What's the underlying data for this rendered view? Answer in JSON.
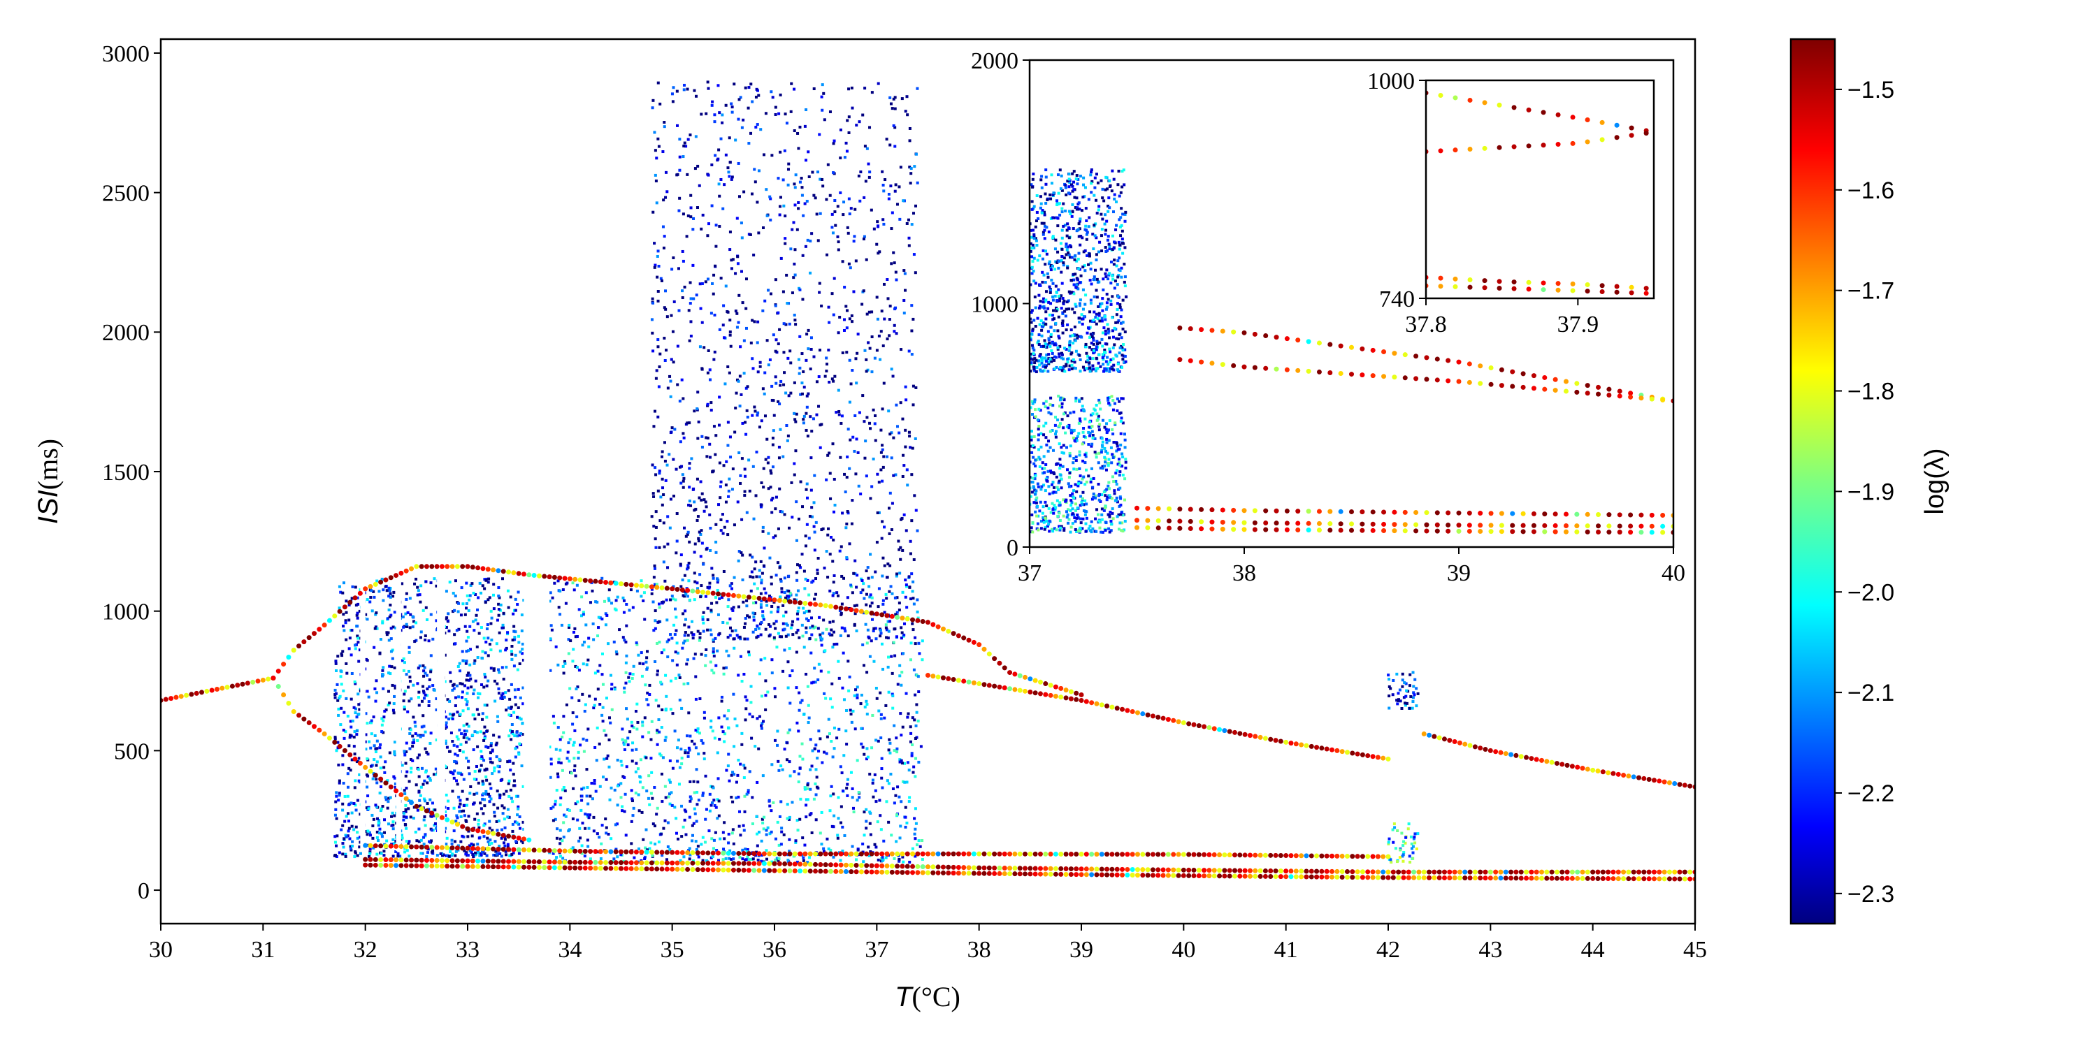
{
  "chart_data": [
    {
      "id": "main",
      "type": "scatter",
      "title": "",
      "xlabel_main": "T",
      "xlabel_unit": "(°C)",
      "ylabel_main": "ISI",
      "ylabel_unit": "(ms)",
      "xlim": [
        30,
        45
      ],
      "ylim": [
        -120,
        3050
      ],
      "xticks": [
        30,
        31,
        32,
        33,
        34,
        35,
        36,
        37,
        38,
        39,
        40,
        41,
        42,
        43,
        44,
        45
      ],
      "yticks": [
        0,
        500,
        1000,
        1500,
        2000,
        2500,
        3000
      ],
      "grid": false,
      "branches": [
        {
          "name": "",
          "points": [
            [
              30,
              680
            ],
            [
              31.1,
              760
            ]
          ]
        },
        {
          "name": "",
          "points": [
            [
              31.1,
              760
            ],
            [
              31.3,
              860
            ],
            [
              31.6,
              950
            ],
            [
              32.0,
              1080
            ],
            [
              32.5,
              1160
            ],
            [
              33.0,
              1160
            ],
            [
              33.6,
              1130
            ],
            [
              35.0,
              1080
            ],
            [
              36.5,
              1020
            ],
            [
              37.5,
              960
            ],
            [
              38.0,
              880
            ],
            [
              38.3,
              780
            ],
            [
              39.0,
              700
            ]
          ]
        },
        {
          "name": "",
          "points": [
            [
              31.1,
              760
            ],
            [
              31.3,
              640
            ],
            [
              31.6,
              560
            ],
            [
              32.0,
              440
            ],
            [
              32.5,
              300
            ],
            [
              33.0,
              220
            ],
            [
              33.6,
              180
            ]
          ]
        },
        {
          "name": "",
          "points": [
            [
              37.5,
              770
            ],
            [
              38.0,
              740
            ],
            [
              39.0,
              680
            ],
            [
              40.0,
              600
            ],
            [
              41.0,
              530
            ],
            [
              42.0,
              470
            ]
          ]
        },
        {
          "name": "",
          "points": [
            [
              42.35,
              560
            ],
            [
              43.0,
              500
            ],
            [
              44.0,
              430
            ],
            [
              45.0,
              370
            ]
          ]
        },
        {
          "name": "",
          "points": [
            [
              32.0,
              160
            ],
            [
              34.0,
              140
            ],
            [
              36.0,
              130
            ],
            [
              38.0,
              130
            ],
            [
              40.0,
              128
            ],
            [
              42.0,
              120
            ]
          ]
        },
        {
          "name": "",
          "points": [
            [
              32.0,
              110
            ],
            [
              34.0,
              100
            ],
            [
              36.0,
              95
            ],
            [
              38.0,
              80
            ],
            [
              40.0,
              72
            ],
            [
              42.0,
              65
            ],
            [
              45.0,
              65
            ]
          ]
        },
        {
          "name": "",
          "points": [
            [
              32.0,
              90
            ],
            [
              34.0,
              80
            ],
            [
              36.0,
              70
            ],
            [
              38.0,
              60
            ],
            [
              40.0,
              52
            ],
            [
              42.0,
              45
            ],
            [
              45.0,
              40
            ]
          ]
        }
      ],
      "chaotic_regions": [
        {
          "x": [
            31.7,
            33.55
          ],
          "y": [
            120,
            1120
          ],
          "lambda": -2.2
        },
        {
          "x": [
            33.8,
            37.45
          ],
          "y": [
            100,
            1130
          ],
          "lambda": -2.15
        },
        {
          "x": [
            34.8,
            37.4
          ],
          "y": [
            900,
            2900
          ],
          "lambda": -2.3
        },
        {
          "x": [
            42.0,
            42.3
          ],
          "y": [
            650,
            790
          ],
          "lambda": -2.25
        },
        {
          "x": [
            42.0,
            42.3
          ],
          "y": [
            100,
            240
          ],
          "lambda": -2.0
        }
      ],
      "gaps": [
        [
          31.95,
          32.0
        ],
        [
          32.3,
          32.35
        ],
        [
          32.7,
          32.78
        ],
        [
          33.55,
          33.8
        ]
      ]
    },
    {
      "id": "inset1",
      "type": "scatter",
      "xlim": [
        37,
        40
      ],
      "ylim": [
        0,
        2000
      ],
      "xticks": [
        37,
        38,
        39,
        40
      ],
      "yticks": [
        0,
        1000,
        2000
      ],
      "branches": [
        {
          "name": "",
          "points": [
            [
              37.7,
              900
            ],
            [
              38.0,
              880
            ],
            [
              39.0,
              760
            ],
            [
              40.0,
              600
            ]
          ]
        },
        {
          "name": "",
          "points": [
            [
              37.7,
              770
            ],
            [
              38.0,
              740
            ],
            [
              39.0,
              680
            ],
            [
              40.0,
              600
            ]
          ]
        },
        {
          "name": "",
          "points": [
            [
              37.5,
              160
            ],
            [
              38.0,
              150
            ],
            [
              39.0,
              140
            ],
            [
              40.0,
              130
            ]
          ]
        },
        {
          "name": "",
          "points": [
            [
              37.5,
              110
            ],
            [
              38.0,
              100
            ],
            [
              39.0,
              90
            ],
            [
              40.0,
              85
            ]
          ]
        },
        {
          "name": "",
          "points": [
            [
              37.5,
              80
            ],
            [
              38.0,
              72
            ],
            [
              39.0,
              65
            ],
            [
              40.0,
              60
            ]
          ]
        }
      ],
      "chaotic_regions": [
        {
          "x": [
            37.0,
            37.45
          ],
          "y": [
            720,
            1550
          ],
          "lambda": -2.2
        },
        {
          "x": [
            37.0,
            37.45
          ],
          "y": [
            60,
            620
          ],
          "lambda": -2.1
        }
      ]
    },
    {
      "id": "inset2",
      "type": "scatter",
      "xlim": [
        37.8,
        37.95
      ],
      "ylim": [
        740,
        1000
      ],
      "xticks": [
        37.8,
        37.9
      ],
      "yticks": [
        740,
        1000
      ],
      "branches": [
        {
          "name": "",
          "points": [
            [
              37.8,
              985
            ],
            [
              37.85,
              970
            ],
            [
              37.9,
              955
            ],
            [
              37.945,
              940
            ]
          ]
        },
        {
          "name": "",
          "points": [
            [
              37.8,
              915
            ],
            [
              37.85,
              920
            ],
            [
              37.9,
              925
            ],
            [
              37.945,
              937
            ]
          ]
        },
        {
          "name": "",
          "points": [
            [
              37.8,
              765
            ],
            [
              37.85,
              760
            ],
            [
              37.9,
              757
            ],
            [
              37.945,
              752
            ]
          ]
        },
        {
          "name": "",
          "points": [
            [
              37.8,
              755
            ],
            [
              37.85,
              752
            ],
            [
              37.9,
              749
            ],
            [
              37.945,
              746
            ]
          ]
        }
      ]
    }
  ],
  "colorbar": {
    "label": "log(λ)",
    "range": [
      -2.33,
      -1.45
    ],
    "ticks": [
      "−1.5",
      "−1.6",
      "−1.7",
      "−1.8",
      "−1.9",
      "−2.0",
      "−2.1",
      "−2.2",
      "−2.3"
    ],
    "tick_values": [
      -1.5,
      -1.6,
      -1.7,
      -1.8,
      -1.9,
      -2.0,
      -2.1,
      -2.2,
      -2.3
    ],
    "colormap": [
      "#00007f",
      "#0000ff",
      "#007fff",
      "#00ffff",
      "#7fff7f",
      "#ffff00",
      "#ff7f00",
      "#ff0000",
      "#7f0000"
    ]
  }
}
